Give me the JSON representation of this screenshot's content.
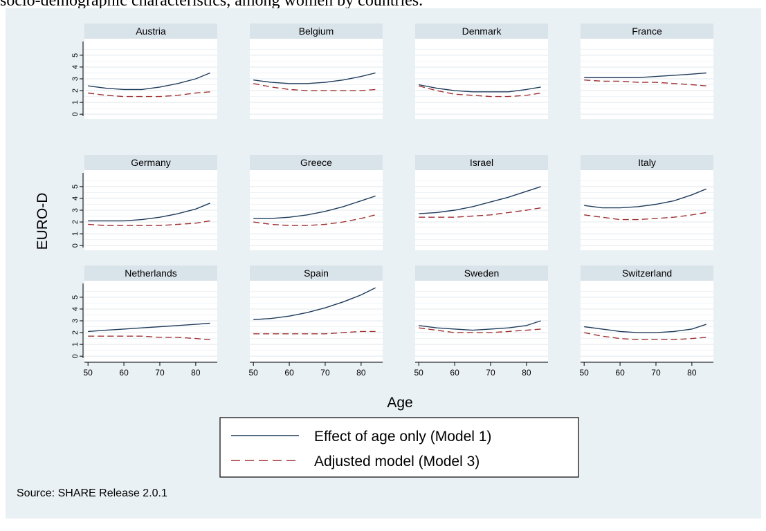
{
  "header_text": "socio-demographic characteristics, among women by countries.",
  "chart_data": {
    "type": "line",
    "ylabel": "EURO-D",
    "xlabel": "Age",
    "x_ticks": [
      50,
      60,
      70,
      80
    ],
    "y_ticks": [
      0,
      1,
      2,
      3,
      4,
      5
    ],
    "xlim": [
      49,
      86
    ],
    "ylim": [
      -0.4,
      6.4
    ],
    "grid": true,
    "legend_position": "bottom",
    "legend": [
      "Effect of age only (Model 1)",
      "Adjusted model (Model 3)"
    ],
    "source": "Source: SHARE Release 2.0.1",
    "colors": {
      "model1": "#1f3b5a",
      "model3": "#a03030",
      "panel_header": "#d9e3ea",
      "background": "#eaf1f4"
    },
    "panels": [
      {
        "country": "Austria",
        "model1": {
          "x": [
            50,
            55,
            60,
            65,
            70,
            75,
            80,
            84
          ],
          "y": [
            2.4,
            2.2,
            2.1,
            2.1,
            2.3,
            2.6,
            3.0,
            3.5
          ]
        },
        "model3": {
          "x": [
            50,
            55,
            60,
            65,
            70,
            75,
            80,
            84
          ],
          "y": [
            1.8,
            1.6,
            1.5,
            1.5,
            1.5,
            1.6,
            1.8,
            1.9
          ]
        }
      },
      {
        "country": "Belgium",
        "model1": {
          "x": [
            50,
            55,
            60,
            65,
            70,
            75,
            80,
            84
          ],
          "y": [
            2.9,
            2.7,
            2.6,
            2.6,
            2.7,
            2.9,
            3.2,
            3.5
          ]
        },
        "model3": {
          "x": [
            50,
            55,
            60,
            65,
            70,
            75,
            80,
            84
          ],
          "y": [
            2.6,
            2.3,
            2.1,
            2.0,
            2.0,
            2.0,
            2.0,
            2.1
          ]
        }
      },
      {
        "country": "Denmark",
        "model1": {
          "x": [
            50,
            55,
            60,
            65,
            70,
            75,
            80,
            84
          ],
          "y": [
            2.5,
            2.2,
            2.0,
            1.9,
            1.9,
            1.9,
            2.1,
            2.3
          ]
        },
        "model3": {
          "x": [
            50,
            55,
            60,
            65,
            70,
            75,
            80,
            84
          ],
          "y": [
            2.4,
            2.0,
            1.7,
            1.6,
            1.5,
            1.5,
            1.6,
            1.8
          ]
        }
      },
      {
        "country": "France",
        "model1": {
          "x": [
            50,
            55,
            60,
            65,
            70,
            75,
            80,
            84
          ],
          "y": [
            3.1,
            3.1,
            3.1,
            3.1,
            3.2,
            3.3,
            3.4,
            3.5
          ]
        },
        "model3": {
          "x": [
            50,
            55,
            60,
            65,
            70,
            75,
            80,
            84
          ],
          "y": [
            2.9,
            2.8,
            2.8,
            2.7,
            2.7,
            2.6,
            2.5,
            2.4
          ]
        }
      },
      {
        "country": "Germany",
        "model1": {
          "x": [
            50,
            55,
            60,
            65,
            70,
            75,
            80,
            84
          ],
          "y": [
            2.1,
            2.1,
            2.1,
            2.2,
            2.4,
            2.7,
            3.1,
            3.6
          ]
        },
        "model3": {
          "x": [
            50,
            55,
            60,
            65,
            70,
            75,
            80,
            84
          ],
          "y": [
            1.8,
            1.7,
            1.7,
            1.7,
            1.7,
            1.8,
            1.9,
            2.1
          ]
        }
      },
      {
        "country": "Greece",
        "model1": {
          "x": [
            50,
            55,
            60,
            65,
            70,
            75,
            80,
            84
          ],
          "y": [
            2.3,
            2.3,
            2.4,
            2.6,
            2.9,
            3.3,
            3.8,
            4.2
          ]
        },
        "model3": {
          "x": [
            50,
            55,
            60,
            65,
            70,
            75,
            80,
            84
          ],
          "y": [
            2.0,
            1.8,
            1.7,
            1.7,
            1.8,
            2.0,
            2.3,
            2.6
          ]
        }
      },
      {
        "country": "Israel",
        "model1": {
          "x": [
            50,
            55,
            60,
            65,
            70,
            75,
            80,
            84
          ],
          "y": [
            2.7,
            2.8,
            3.0,
            3.3,
            3.7,
            4.1,
            4.6,
            5.0
          ]
        },
        "model3": {
          "x": [
            50,
            55,
            60,
            65,
            70,
            75,
            80,
            84
          ],
          "y": [
            2.4,
            2.4,
            2.4,
            2.5,
            2.6,
            2.8,
            3.0,
            3.2
          ]
        }
      },
      {
        "country": "Italy",
        "model1": {
          "x": [
            50,
            55,
            60,
            65,
            70,
            75,
            80,
            84
          ],
          "y": [
            3.4,
            3.2,
            3.2,
            3.3,
            3.5,
            3.8,
            4.3,
            4.8
          ]
        },
        "model3": {
          "x": [
            50,
            55,
            60,
            65,
            70,
            75,
            80,
            84
          ],
          "y": [
            2.6,
            2.4,
            2.2,
            2.2,
            2.3,
            2.4,
            2.6,
            2.8
          ]
        }
      },
      {
        "country": "Netherlands",
        "model1": {
          "x": [
            50,
            55,
            60,
            65,
            70,
            75,
            80,
            84
          ],
          "y": [
            2.1,
            2.2,
            2.3,
            2.4,
            2.5,
            2.6,
            2.7,
            2.8
          ]
        },
        "model3": {
          "x": [
            50,
            55,
            60,
            65,
            70,
            75,
            80,
            84
          ],
          "y": [
            1.7,
            1.7,
            1.7,
            1.7,
            1.6,
            1.6,
            1.5,
            1.4
          ]
        }
      },
      {
        "country": "Spain",
        "model1": {
          "x": [
            50,
            55,
            60,
            65,
            70,
            75,
            80,
            84
          ],
          "y": [
            3.1,
            3.2,
            3.4,
            3.7,
            4.1,
            4.6,
            5.2,
            5.8
          ]
        },
        "model3": {
          "x": [
            50,
            55,
            60,
            65,
            70,
            75,
            80,
            84
          ],
          "y": [
            1.9,
            1.9,
            1.9,
            1.9,
            1.9,
            2.0,
            2.1,
            2.1
          ]
        }
      },
      {
        "country": "Sweden",
        "model1": {
          "x": [
            50,
            55,
            60,
            65,
            70,
            75,
            80,
            84
          ],
          "y": [
            2.6,
            2.4,
            2.3,
            2.2,
            2.3,
            2.4,
            2.6,
            3.0
          ]
        },
        "model3": {
          "x": [
            50,
            55,
            60,
            65,
            70,
            75,
            80,
            84
          ],
          "y": [
            2.4,
            2.2,
            2.0,
            2.0,
            2.0,
            2.1,
            2.2,
            2.3
          ]
        }
      },
      {
        "country": "Switzerland",
        "model1": {
          "x": [
            50,
            55,
            60,
            65,
            70,
            75,
            80,
            84
          ],
          "y": [
            2.5,
            2.3,
            2.1,
            2.0,
            2.0,
            2.1,
            2.3,
            2.7
          ]
        },
        "model3": {
          "x": [
            50,
            55,
            60,
            65,
            70,
            75,
            80,
            84
          ],
          "y": [
            2.0,
            1.7,
            1.5,
            1.4,
            1.4,
            1.4,
            1.5,
            1.6
          ]
        }
      }
    ]
  }
}
